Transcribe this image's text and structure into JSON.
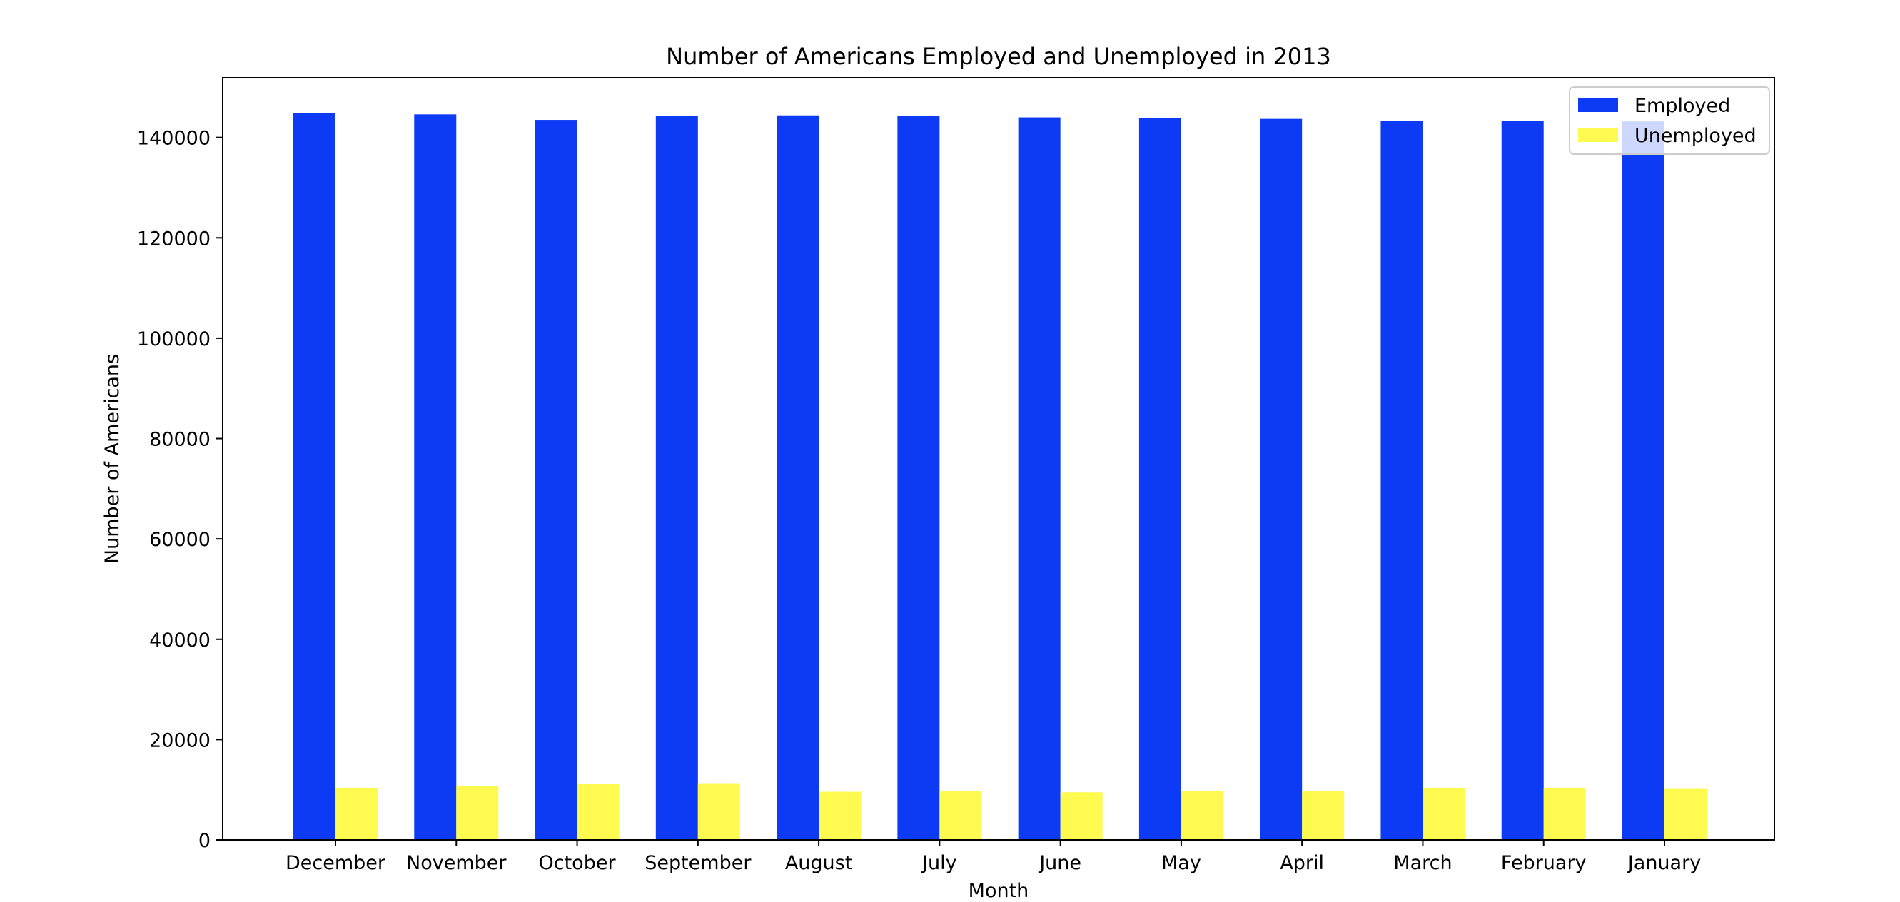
{
  "chart_data": {
    "type": "bar",
    "title": "Number of Americans Employed and Unemployed in 2013",
    "xlabel": "Month",
    "ylabel": "Number of Americans",
    "categories": [
      "December",
      "November",
      "October",
      "September",
      "August",
      "July",
      "June",
      "May",
      "April",
      "March",
      "February",
      "January"
    ],
    "series": [
      {
        "name": "Employed",
        "color": "#0d3bf5",
        "values": [
          144900,
          144600,
          143500,
          144300,
          144400,
          144300,
          144000,
          143800,
          143700,
          143300,
          143300,
          143200
        ]
      },
      {
        "name": "Unemployed",
        "color": "#fffa50",
        "values": [
          10400,
          10800,
          11200,
          11300,
          9600,
          9700,
          9500,
          9800,
          9800,
          10400,
          10400,
          10300
        ]
      }
    ],
    "ylim": [
      0,
      151900
    ],
    "yticks": [
      0,
      20000,
      40000,
      60000,
      80000,
      100000,
      120000,
      140000
    ],
    "grid": false,
    "legend": "top-right"
  }
}
